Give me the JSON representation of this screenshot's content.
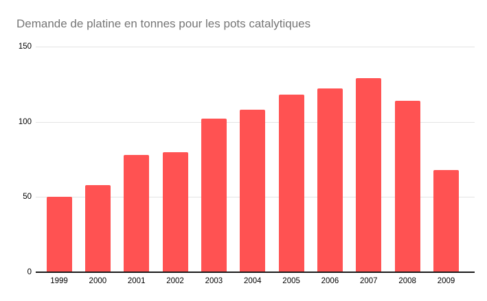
{
  "window": {
    "background": "#ffffff"
  },
  "colors": {
    "bar": "#FF5252",
    "gridline": "#e3e3e3",
    "axis_line": "#1a1a1a",
    "title_text": "#757575",
    "tick_text": "#000000"
  },
  "chart_data": {
    "type": "bar",
    "title": "Demande de platine en tonnes pour les pots catalytiques",
    "categories": [
      "1999",
      "2000",
      "2001",
      "2002",
      "2003",
      "2004",
      "2005",
      "2006",
      "2007",
      "2008",
      "2009"
    ],
    "values": [
      50,
      58,
      78,
      80,
      102,
      108,
      118,
      122,
      129,
      114,
      68
    ],
    "xlabel": "",
    "ylabel": "",
    "ylim": [
      0,
      150
    ],
    "yticks": [
      0,
      50,
      100,
      150
    ],
    "grid": true,
    "legend": "none",
    "bar_color": "#FF5252",
    "background": "#ffffff"
  }
}
